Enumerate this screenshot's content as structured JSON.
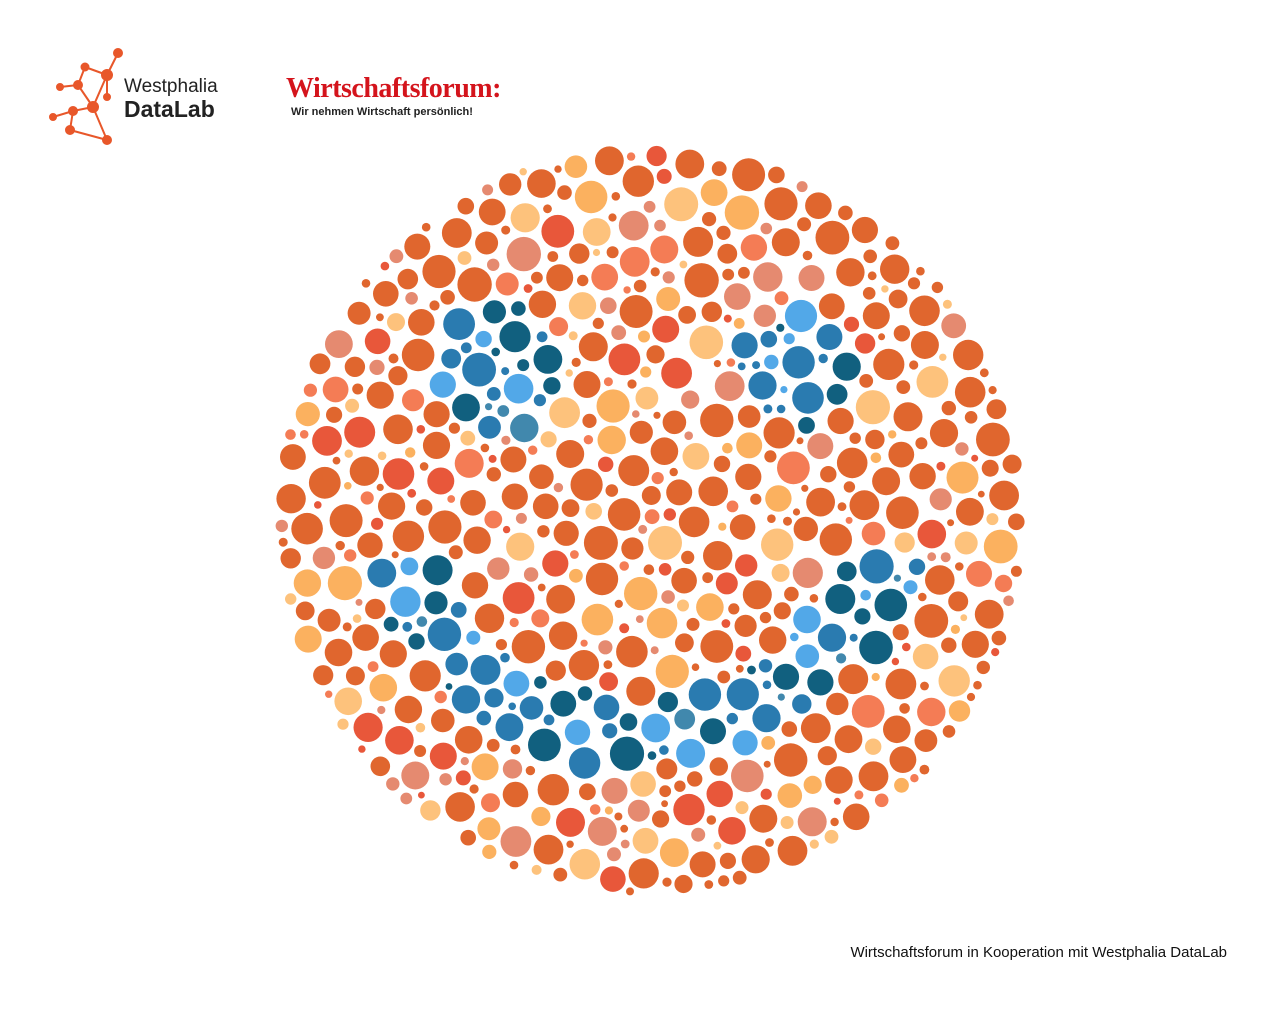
{
  "header": {
    "logo_left": {
      "line1": "Westphalia",
      "line2": "DataLab"
    },
    "logo_right": {
      "title": "Wirtschaftsforum:",
      "tagline": "Wir nehmen Wirtschaft persönlich!"
    }
  },
  "footer": {
    "text": "Wirtschaftsforum in Kooperation mit Westphalia DataLab"
  }
}
